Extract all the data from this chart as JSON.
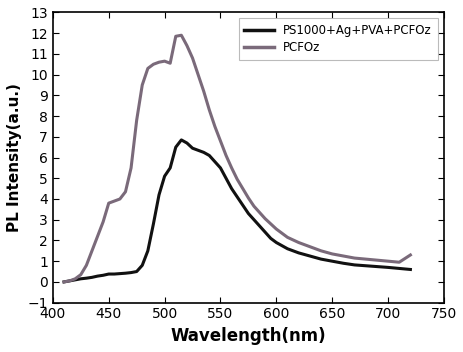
{
  "title": "",
  "xlabel": "Wavelength(nm)",
  "ylabel": "PL Intensity(a.u.)",
  "xlim": [
    400,
    750
  ],
  "ylim": [
    -1,
    13
  ],
  "xticks": [
    400,
    450,
    500,
    550,
    600,
    650,
    700,
    750
  ],
  "yticks": [
    -1,
    0,
    1,
    2,
    3,
    4,
    5,
    6,
    7,
    8,
    9,
    10,
    11,
    12,
    13
  ],
  "legend": [
    "PS1000+Ag+PVA+PCFOz",
    "PCFOz"
  ],
  "line1_color": "#111111",
  "line2_color": "#7a6a7a",
  "bg_color": "#ffffff",
  "line1_x": [
    410,
    415,
    420,
    425,
    430,
    435,
    440,
    445,
    450,
    455,
    460,
    465,
    470,
    475,
    480,
    485,
    490,
    495,
    500,
    505,
    510,
    515,
    520,
    525,
    530,
    535,
    540,
    545,
    550,
    555,
    560,
    565,
    570,
    575,
    580,
    585,
    590,
    595,
    600,
    610,
    620,
    630,
    640,
    650,
    660,
    670,
    680,
    690,
    700,
    710,
    720
  ],
  "line1_y": [
    0.0,
    0.05,
    0.1,
    0.15,
    0.18,
    0.22,
    0.28,
    0.32,
    0.38,
    0.38,
    0.4,
    0.42,
    0.45,
    0.5,
    0.8,
    1.5,
    2.8,
    4.2,
    5.1,
    5.5,
    6.5,
    6.85,
    6.7,
    6.45,
    6.35,
    6.25,
    6.1,
    5.8,
    5.5,
    5.0,
    4.5,
    4.1,
    3.7,
    3.3,
    3.0,
    2.7,
    2.4,
    2.1,
    1.9,
    1.6,
    1.4,
    1.25,
    1.1,
    1.0,
    0.9,
    0.82,
    0.78,
    0.74,
    0.7,
    0.65,
    0.6
  ],
  "line2_x": [
    410,
    415,
    420,
    425,
    430,
    435,
    440,
    445,
    450,
    455,
    460,
    465,
    470,
    475,
    480,
    485,
    490,
    495,
    500,
    505,
    510,
    515,
    520,
    525,
    530,
    535,
    540,
    545,
    550,
    555,
    560,
    565,
    570,
    575,
    580,
    585,
    590,
    595,
    600,
    610,
    620,
    630,
    640,
    650,
    660,
    670,
    680,
    690,
    700,
    710,
    720
  ],
  "line2_y": [
    0.0,
    0.05,
    0.15,
    0.35,
    0.8,
    1.5,
    2.2,
    2.9,
    3.8,
    3.9,
    4.0,
    4.35,
    5.5,
    7.8,
    9.5,
    10.3,
    10.5,
    10.6,
    10.65,
    10.55,
    11.85,
    11.9,
    11.4,
    10.8,
    10.0,
    9.2,
    8.3,
    7.5,
    6.8,
    6.1,
    5.5,
    4.95,
    4.5,
    4.05,
    3.65,
    3.35,
    3.05,
    2.8,
    2.55,
    2.15,
    1.9,
    1.7,
    1.5,
    1.35,
    1.25,
    1.15,
    1.1,
    1.05,
    1.0,
    0.95,
    1.3
  ]
}
